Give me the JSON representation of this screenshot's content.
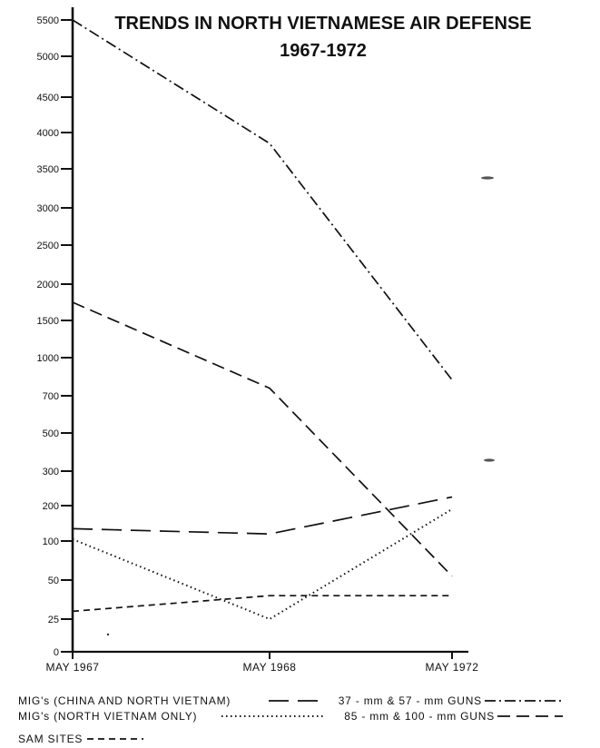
{
  "chart_data": {
    "type": "line",
    "title": "TRENDS IN NORTH VIETNAMESE AIR DEFENSE",
    "subtitle": "1967-1972",
    "xlabel": "",
    "ylabel": "",
    "categories": [
      "MAY 1967",
      "MAY 1968",
      "MAY 1972"
    ],
    "y_scale": "nonuniform",
    "y_ticks": [
      0,
      25,
      50,
      100,
      200,
      300,
      500,
      700,
      1000,
      1500,
      2000,
      2500,
      3000,
      3500,
      4000,
      4500,
      5000,
      5500
    ],
    "y_tick_labels": [
      "0",
      "25",
      "50",
      "100",
      "200",
      "300",
      "500",
      "700",
      "1000",
      "1500",
      "2000",
      "2500",
      "3000",
      "3500",
      "4000",
      "4500",
      "5000",
      "5500"
    ],
    "ylim": [
      0,
      5500
    ],
    "grid": false,
    "series": [
      {
        "name": "MIG's (CHINA AND NORTH VIETNAM)",
        "values": [
          135,
          120,
          225
        ],
        "dash": "22 10"
      },
      {
        "name": "MIG's (NORTH VIETNAM ONLY)",
        "values": [
          105,
          25,
          190
        ],
        "dash": "1.5 3.5"
      },
      {
        "name": "SAM SITES",
        "values": [
          30,
          40,
          40
        ],
        "dash": "7 5"
      },
      {
        "name": "37 - mm & 57 - mm GUNS",
        "values": [
          5500,
          3850,
          825
        ],
        "dash": "12 4 2 4"
      },
      {
        "name": "85 - mm & 100 - mm GUNS",
        "values": [
          1750,
          760,
          55
        ],
        "dash": "14 7"
      }
    ],
    "legend": {
      "placement": "bottom",
      "entries": [
        {
          "label": "MIG's (CHINA AND NORTH VIETNAM)",
          "series": 0
        },
        {
          "label": "37 - mm  &  57 - mm  GUNS",
          "series": 3
        },
        {
          "label": "MIG's (NORTH VIETNAM ONLY)",
          "series": 1
        },
        {
          "label": "85 - mm  &  100 - mm  GUNS",
          "series": 4
        },
        {
          "label": "SAM  SITES",
          "series": 2
        }
      ]
    }
  }
}
